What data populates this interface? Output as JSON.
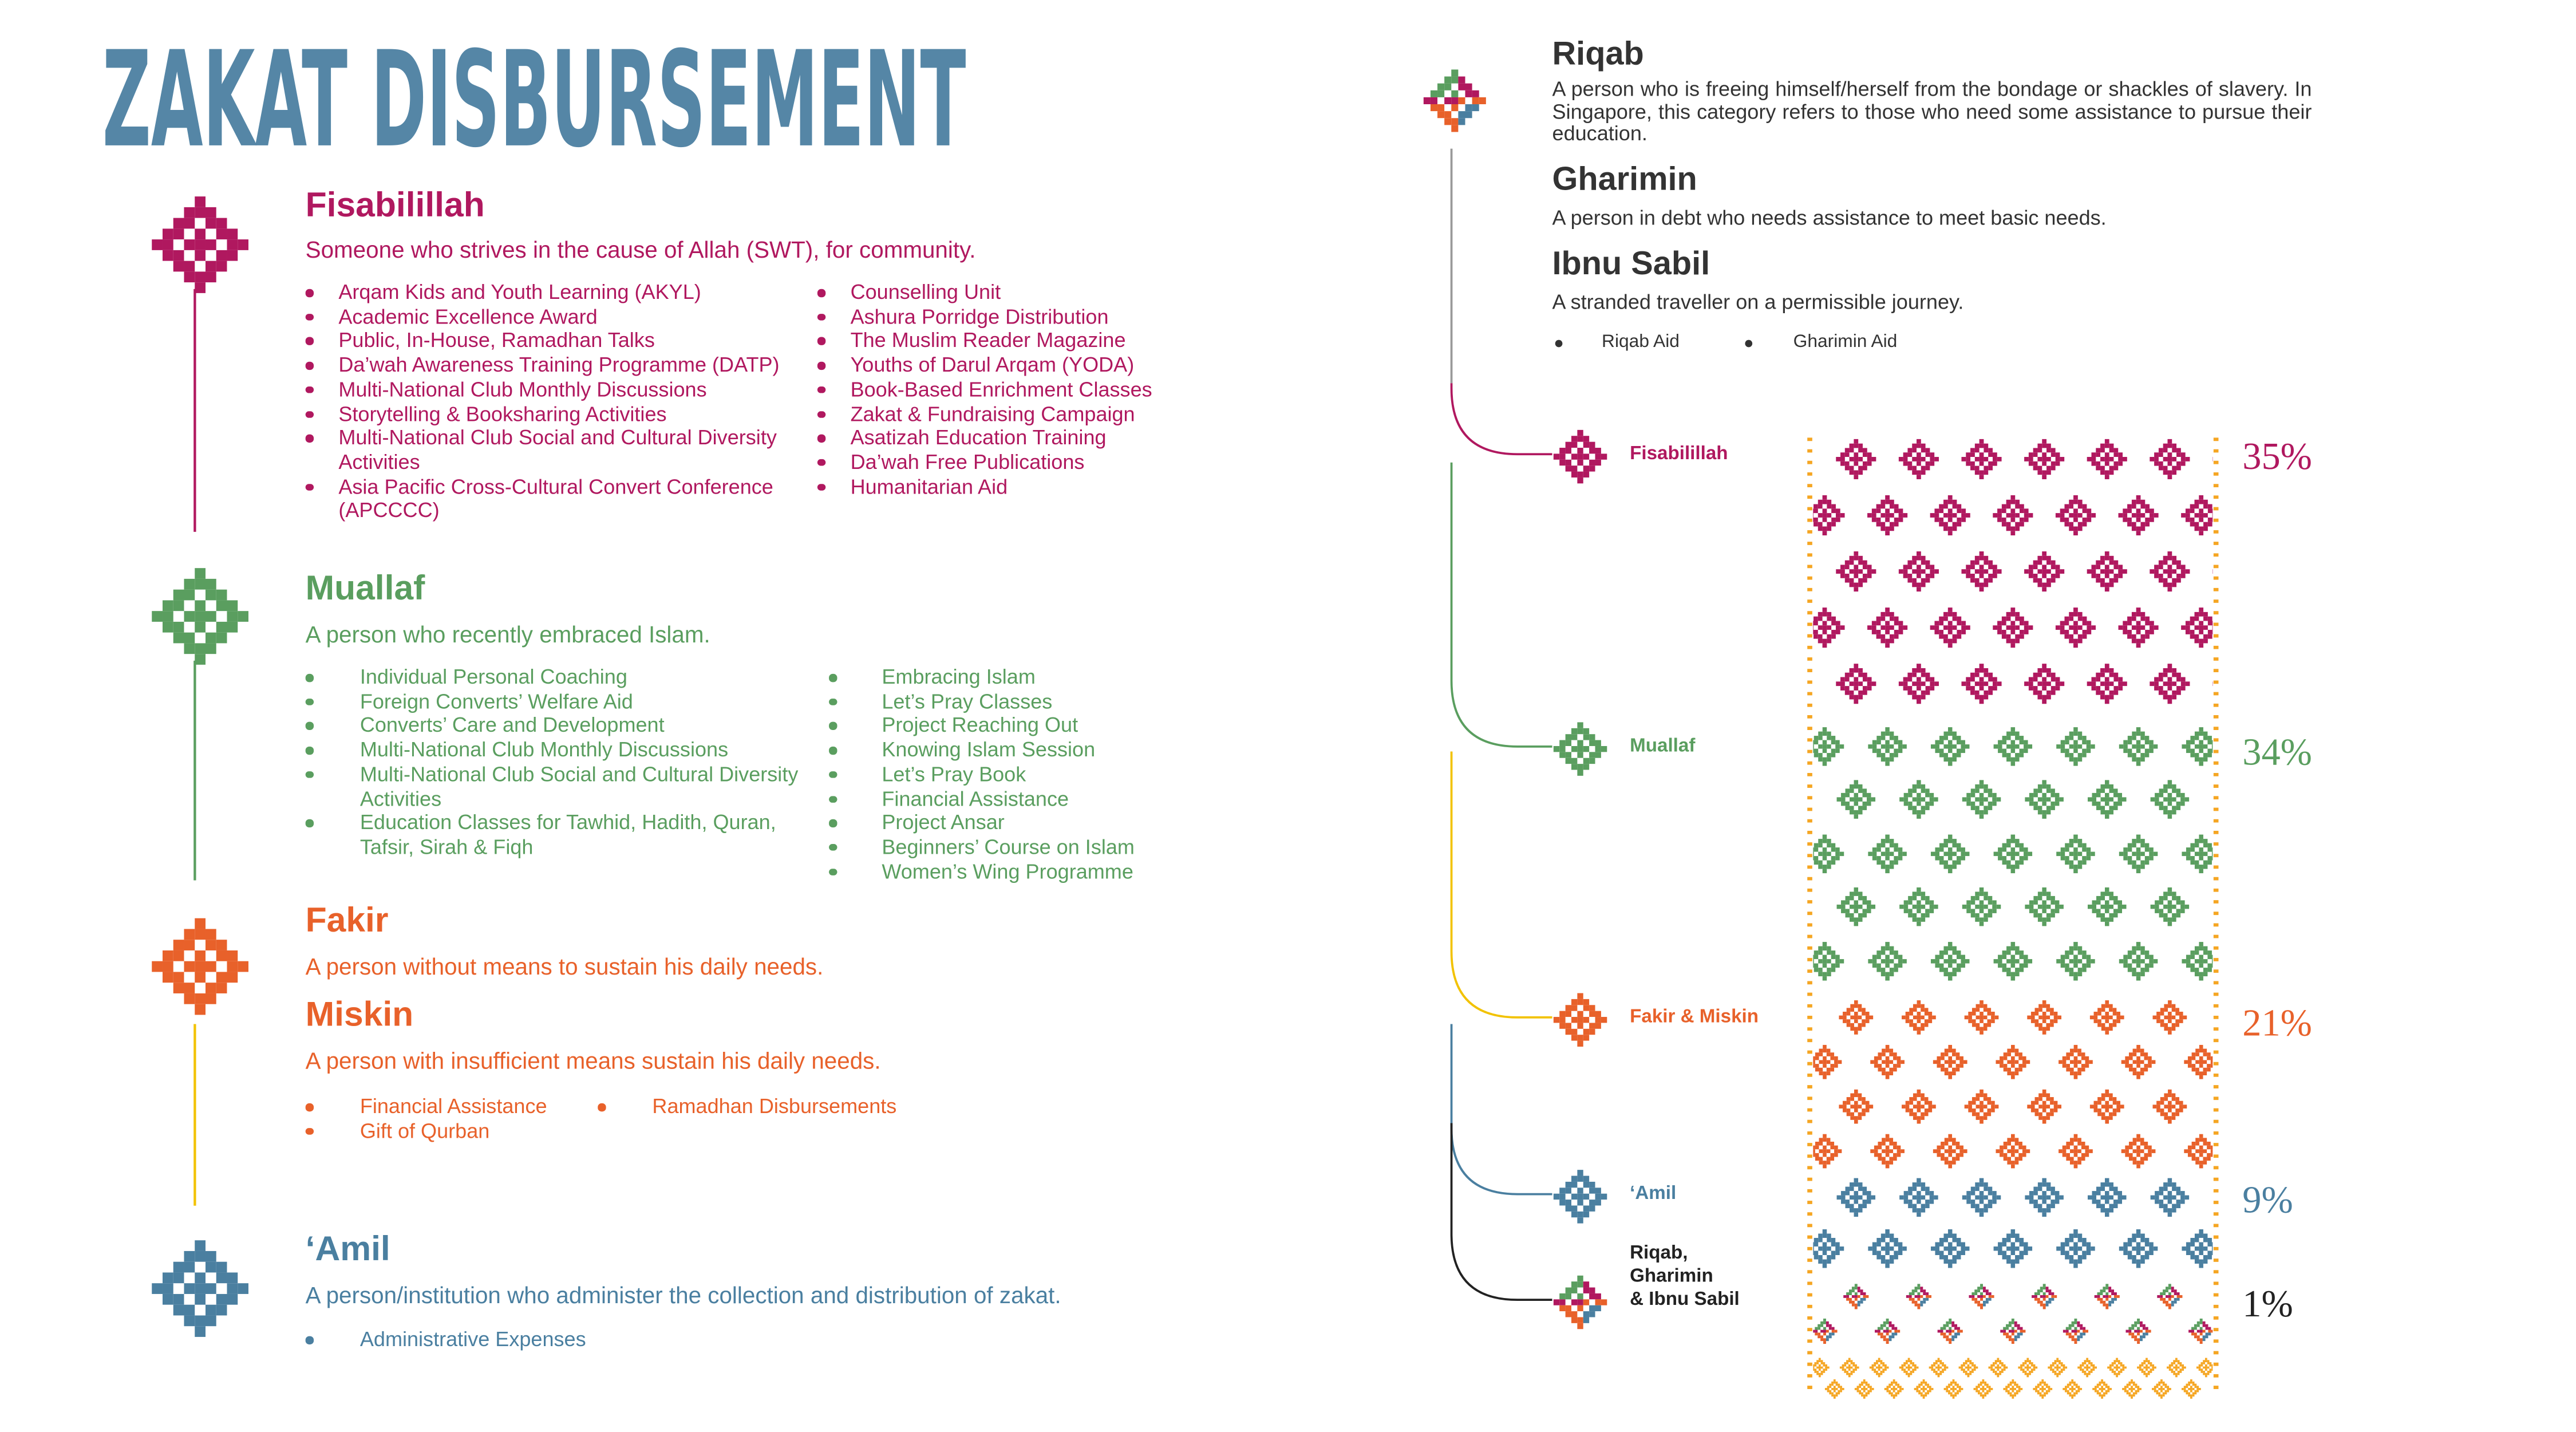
{
  "title": "ZAKAT DISBURSEMENT",
  "sections": [
    {
      "entries": [
        {
          "heading": "Fisabilillah",
          "description": "Someone who strives in the cause of Allah (SWT), for community."
        }
      ],
      "columns": [
        [
          "Arqam Kids and Youth Learning (AKYL)",
          "Academic Excellence Award",
          "Public, In-House, Ramadhan Talks",
          "Da’wah Awareness Training Programme (DATP)",
          "Multi-National Club Monthly Discussions",
          "Storytelling & Booksharing Activities",
          "Multi-National Club Social and Cultural Diversity Activities",
          "Asia Pacific Cross-Cultural Convert Conference (APCCCC)"
        ],
        [
          "Counselling Unit",
          "Ashura Porridge Distribution",
          "The Muslim Reader Magazine",
          "Youths of Darul Arqam (YODA)",
          "Book-Based Enrichment Classes",
          "Zakat & Fundraising Campaign",
          "Asatizah Education Training",
          "Da’wah Free Publications",
          "Humanitarian Aid"
        ]
      ]
    },
    {
      "entries": [
        {
          "heading": "Muallaf",
          "description": "A person who recently embraced Islam."
        }
      ],
      "columns": [
        [
          "Individual Personal Coaching",
          "Foreign Converts’ Welfare Aid",
          "Converts’ Care and Development",
          "Multi-National Club Monthly Discussions",
          "Multi-National Club Social and Cultural Diversity Activities",
          "Education Classes for Tawhid, Hadith, Quran, Tafsir, Sirah & Fiqh"
        ],
        [
          "Embracing Islam",
          "Let’s Pray Classes",
          "Project Reaching Out",
          "Knowing Islam Session",
          "Let’s Pray Book",
          "Financial Assistance",
          "Project Ansar",
          "Beginners’ Course on Islam",
          "Women’s Wing Programme"
        ]
      ]
    },
    {
      "entries": [
        {
          "heading": "Fakir",
          "description": "A person without means to  sustain his daily needs."
        },
        {
          "heading": "Miskin",
          "description": "A person with insufficient means sustain his daily needs."
        }
      ],
      "columns": [
        [
          "Financial Assistance",
          "Gift of Qurban"
        ],
        [
          "Ramadhan Disbursements"
        ]
      ]
    },
    {
      "entries": [
        {
          "heading": "‘Amil",
          "description": "A person/institution who administer the collection and distribution of zakat."
        }
      ],
      "columns": [
        [
          "Administrative Expenses"
        ]
      ]
    }
  ],
  "other_categories": [
    {
      "heading": "Riqab",
      "description": "A person who is freeing himself/herself from the bondage or shackles of slavery. In Singapore, this category refers to those who need some assistance to pursue their education."
    },
    {
      "heading": "Gharimin",
      "description": "A person in debt who needs assistance to meet basic needs."
    },
    {
      "heading": "Ibnu Sabil",
      "description": "A stranded traveller on a permissible journey."
    }
  ],
  "legend": [
    "Riqab Aid",
    "Gharimin Aid"
  ],
  "breakdown": [
    {
      "label": [
        "Fisabilillah"
      ],
      "share": "35%"
    },
    {
      "label": [
        "Muallaf"
      ],
      "share": "34%"
    },
    {
      "label": [
        "Fakir & Miskin"
      ],
      "share": "21%"
    },
    {
      "label": [
        "‘Amil"
      ],
      "share": "9%"
    },
    {
      "label": [
        "Riqab,",
        "Gharimin",
        "& Ibnu Sabil"
      ],
      "share": "1%"
    }
  ]
}
